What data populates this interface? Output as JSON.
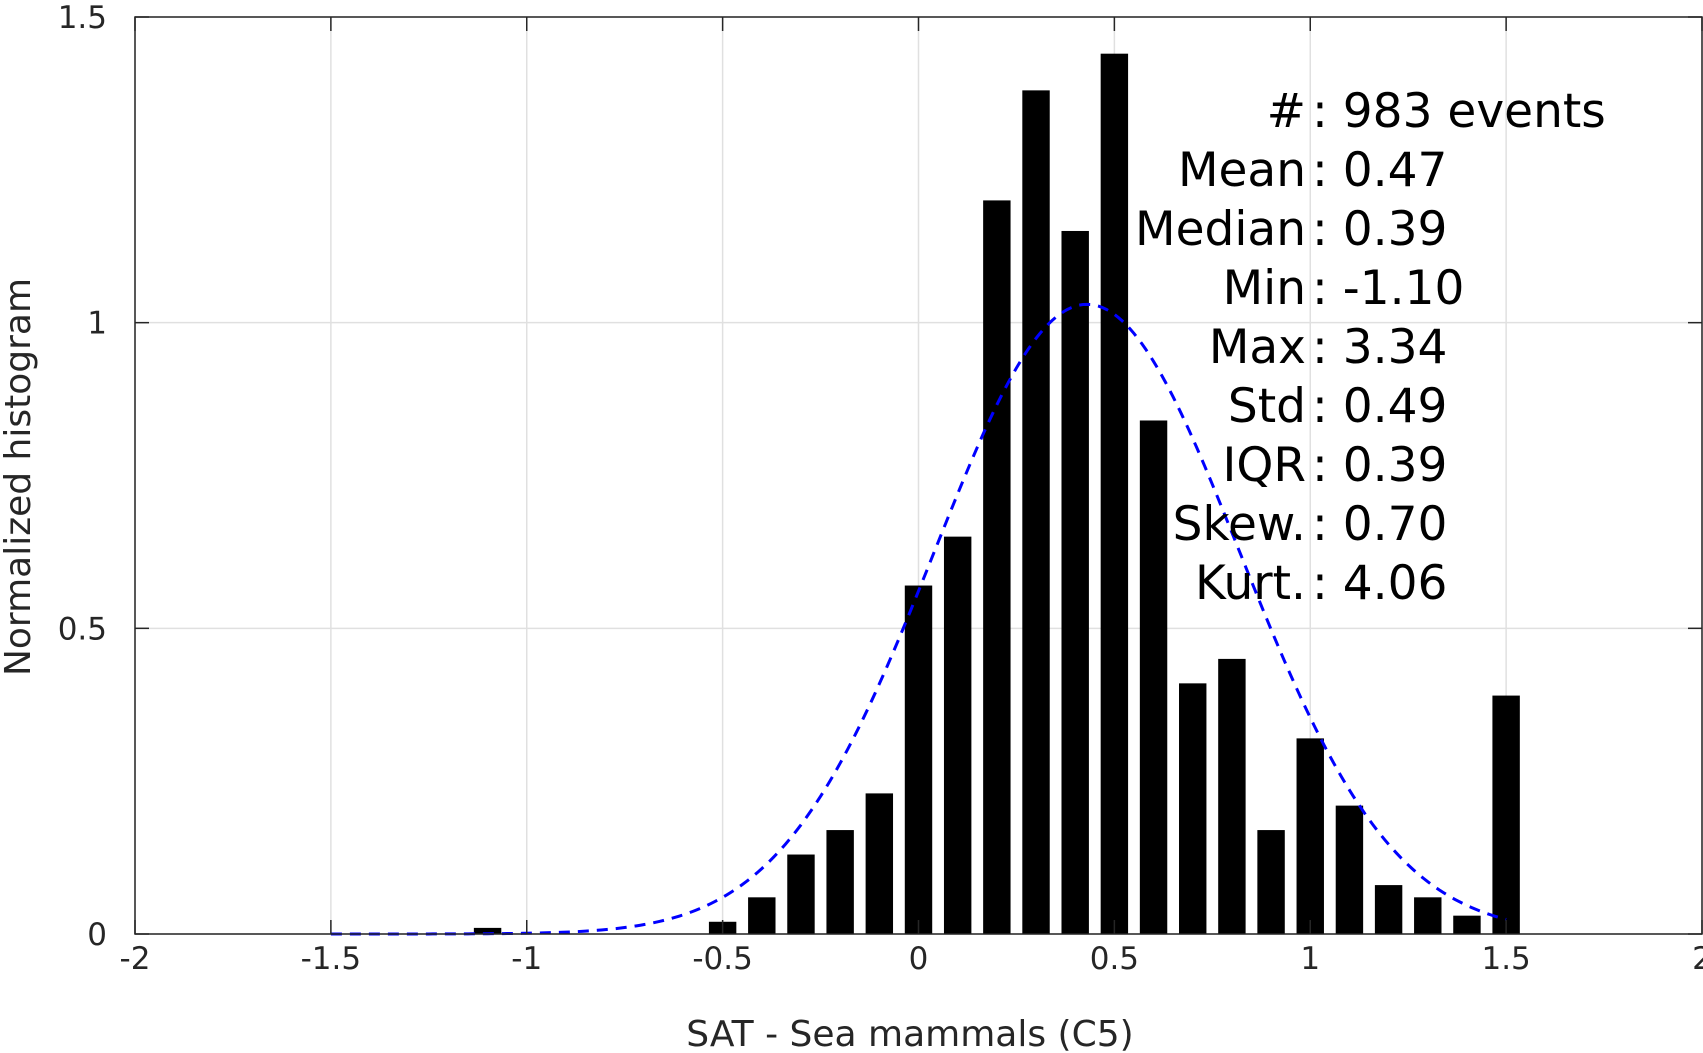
{
  "chart_data": {
    "type": "bar",
    "xlabel": "SAT - Sea mammals (C5)",
    "ylabel": "Normalized histogram",
    "xlim": [
      -2,
      2
    ],
    "ylim": [
      0,
      1.5
    ],
    "xticks": [
      "-2",
      "-1.5",
      "-1",
      "-0.5",
      "0",
      "0.5",
      "1",
      "1.5",
      "2"
    ],
    "yticks": [
      "0",
      "0.5",
      "1",
      "1.5"
    ],
    "grid": true,
    "bar_color": "#000000",
    "bin_width": 0.1,
    "bins": [
      {
        "x": -1.1,
        "value": 0.01
      },
      {
        "x": -0.5,
        "value": 0.02
      },
      {
        "x": -0.4,
        "value": 0.06
      },
      {
        "x": -0.3,
        "value": 0.13
      },
      {
        "x": -0.2,
        "value": 0.17
      },
      {
        "x": -0.1,
        "value": 0.23
      },
      {
        "x": 0.0,
        "value": 0.57
      },
      {
        "x": 0.1,
        "value": 0.65
      },
      {
        "x": 0.2,
        "value": 1.2
      },
      {
        "x": 0.3,
        "value": 1.38
      },
      {
        "x": 0.4,
        "value": 1.15
      },
      {
        "x": 0.5,
        "value": 1.44
      },
      {
        "x": 0.6,
        "value": 0.84
      },
      {
        "x": 0.7,
        "value": 0.41
      },
      {
        "x": 0.8,
        "value": 0.45
      },
      {
        "x": 0.9,
        "value": 0.17
      },
      {
        "x": 1.0,
        "value": 0.32
      },
      {
        "x": 1.1,
        "value": 0.21
      },
      {
        "x": 1.2,
        "value": 0.08
      },
      {
        "x": 1.3,
        "value": 0.06
      },
      {
        "x": 1.4,
        "value": 0.03
      },
      {
        "x": 1.5,
        "value": 0.39
      }
    ],
    "fit_curve": {
      "style": "dashed",
      "color": "#0000ff",
      "mean": 0.43,
      "std": 0.39,
      "peak": 1.03,
      "x_range": [
        -1.5,
        1.5
      ]
    },
    "stats": [
      {
        "label": "# ",
        "value": ": 983 events"
      },
      {
        "label": "Mean",
        "value": ": 0.47"
      },
      {
        "label": "Median",
        "value": ": 0.39"
      },
      {
        "label": "Min",
        "value": ": -1.10"
      },
      {
        "label": "Max",
        "value": ": 3.34"
      },
      {
        "label": "Std",
        "value": ": 0.49"
      },
      {
        "label": "IQR",
        "value": ": 0.39"
      },
      {
        "label": "Skew.",
        "value": ": 0.70"
      },
      {
        "label": "Kurt.",
        "value": ": 4.06"
      }
    ]
  }
}
